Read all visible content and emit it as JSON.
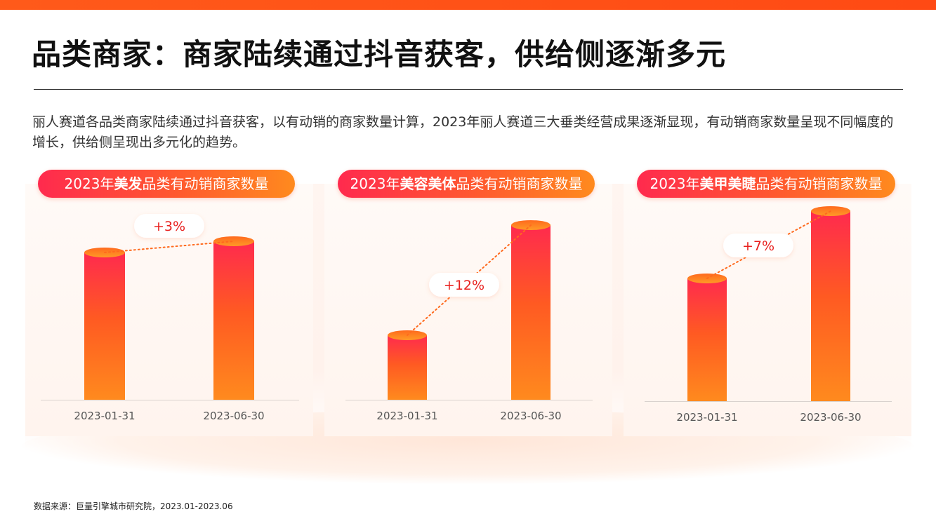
{
  "title": "品类商家：商家陆续通过抖音获客，供给侧逐渐多元",
  "description": "丽人赛道各品类商家陆续通过抖音获客，以有动销的商家数量计算，2023年丽人赛道三大垂类经营成果逐渐显现，有动销商家数量呈现不同幅度的增长，供给侧呈现出多元化的趋势。",
  "source": "数据来源：巨量引擎城市研究院，2023.01-2023.06",
  "colors": {
    "accent": "#ff4a14",
    "bar_top": "#ff2a4e",
    "bar_bottom": "#ff8a1e",
    "change_text": "#e8201e"
  },
  "chart_data": [
    {
      "type": "bar",
      "title_prefix": "2023年",
      "title_bold": "美发",
      "title_suffix": "品类有动销商家数量",
      "categories": [
        "2023-01-31",
        "2023-06-30"
      ],
      "values": [
        100,
        103
      ],
      "change_label": "+3%"
    },
    {
      "type": "bar",
      "title_prefix": "2023年",
      "title_bold": "美容美体",
      "title_suffix": "品类有动销商家数量",
      "categories": [
        "2023-01-31",
        "2023-06-30"
      ],
      "values": [
        100,
        112
      ],
      "change_label": "+12%"
    },
    {
      "type": "bar",
      "title_prefix": "2023年",
      "title_bold": "美甲美睫",
      "title_suffix": "品类有动销商家数量",
      "categories": [
        "2023-01-31",
        "2023-06-30"
      ],
      "values": [
        100,
        107
      ],
      "change_label": "+7%"
    }
  ]
}
